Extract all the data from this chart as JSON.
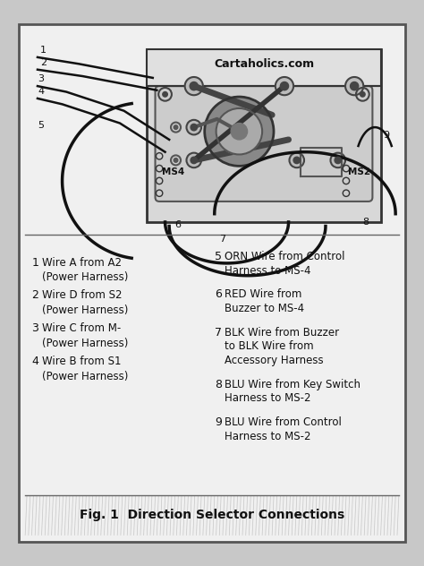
{
  "title": "Cartaholics.com",
  "caption": "Fig. 1  Direction Selector Connections",
  "bg_outer": "#c8c8c8",
  "bg_inner": "#f0f0f0",
  "bg_legend": "#f5f5f5",
  "border_color": "#444444",
  "text_color": "#111111",
  "wire_color": "#111111",
  "legend_items_left": [
    [
      "1",
      "Wire A from A2",
      "(Power Harness)"
    ],
    [
      "2",
      "Wire D from S2",
      "(Power Harness)"
    ],
    [
      "3",
      "Wire C from M-",
      "(Power Harness)"
    ],
    [
      "4",
      "Wire B from S1",
      "(Power Harness)"
    ]
  ],
  "legend_items_right": [
    [
      "5",
      "ORN Wire from Control",
      "Harness to MS-4"
    ],
    [
      "6",
      "RED Wire from",
      "Buzzer to MS-4"
    ],
    [
      "7",
      "BLK Wire from Buzzer",
      "to BLK Wire from",
      "Accessory Harness"
    ],
    [
      "8",
      "BLU Wire from Key Switch",
      "Harness to MS-2"
    ],
    [
      "9",
      "BLU Wire from Control",
      "Harness to MS-2"
    ]
  ],
  "ms4_label": "MS4",
  "ms2_label": "MS2"
}
